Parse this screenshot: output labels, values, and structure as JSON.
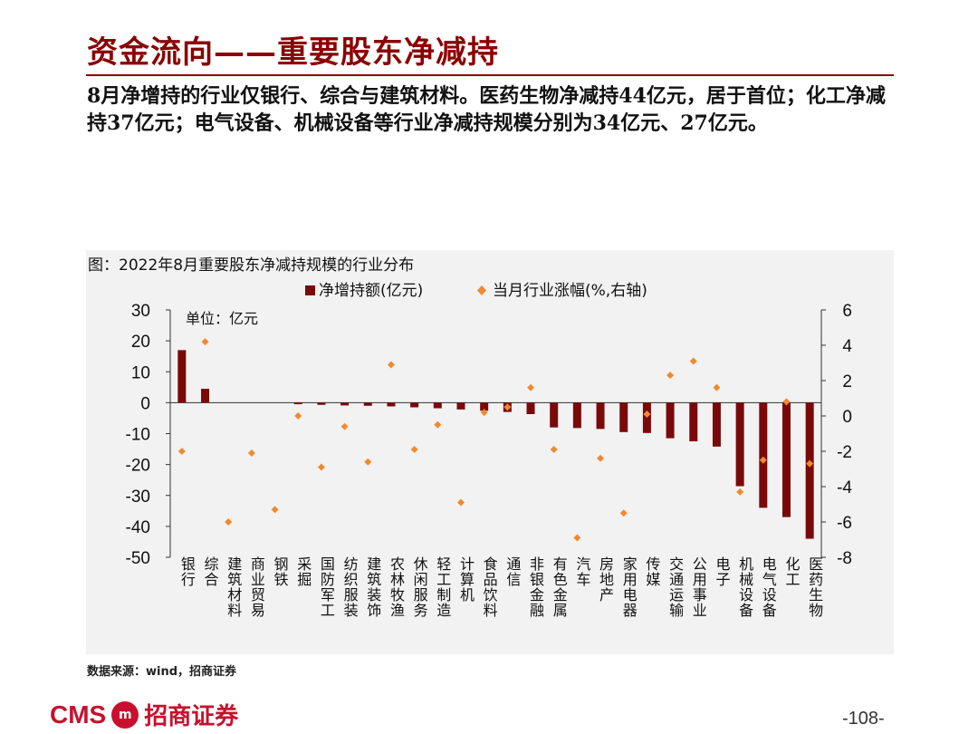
{
  "header": {
    "title": "资金流向——重要股东净减持",
    "summary": "8月净增持的行业仅银行、综合与建筑材料。医药生物净减持44亿元，居于首位；化工净减持37亿元；电气设备、机械设备等行业净减持规模分别为34亿元、27亿元。"
  },
  "chart_data": {
    "type": "bar",
    "title": "图：2022年8月重要股东净减持规模的行业分布",
    "unit_note": "单位：亿元",
    "categories": [
      "银行",
      "综合",
      "建筑材料",
      "商业贸易",
      "钢铁",
      "采掘",
      "国防军工",
      "纺织服装",
      "建筑装饰",
      "农林牧渔",
      "休闲服务",
      "轻工制造",
      "计算机",
      "食品饮料",
      "通信",
      "非银金融",
      "有色金属",
      "汽车",
      "房地产",
      "家用电器",
      "传媒",
      "交通运输",
      "公用事业",
      "电子",
      "机械设备",
      "电气设备",
      "化工",
      "医药生物"
    ],
    "series": [
      {
        "name": "净增持额(亿元)",
        "kind": "bar",
        "axis": "left",
        "color": "#7a0a0a",
        "values": [
          17,
          4.5,
          0,
          0,
          0,
          -0.5,
          -0.7,
          -0.9,
          -1,
          -1.2,
          -1.5,
          -1.8,
          -2.2,
          -2.6,
          -3,
          -3.7,
          -8,
          -8.2,
          -8.5,
          -9.5,
          -9.8,
          -11.5,
          -12.5,
          -14.2,
          -27,
          -34,
          -37,
          -44
        ]
      },
      {
        "name": "当月行业涨幅(%,右轴)",
        "kind": "scatter",
        "axis": "right",
        "color": "#f08a2e",
        "values": [
          -2,
          4.2,
          -6,
          -2.1,
          -5.3,
          0,
          -2.9,
          -0.6,
          -2.6,
          2.9,
          -1.9,
          -0.5,
          -4.9,
          0.2,
          0.5,
          1.6,
          -1.9,
          -6.9,
          -2.4,
          -5.5,
          0.1,
          2.3,
          3.1,
          1.6,
          -4.3,
          -2.5,
          0.8,
          -2.7
        ]
      }
    ],
    "ylim": [
      -50,
      30
    ],
    "yticks": [
      30,
      20,
      10,
      0,
      -10,
      -20,
      -30,
      -40,
      -50
    ],
    "y2lim": [
      -8,
      6
    ],
    "y2ticks": [
      6,
      4,
      2,
      0,
      -2,
      -4,
      -6,
      -8
    ],
    "legend_position": "top"
  },
  "source": "数据来源：wind，招商证券",
  "footer": {
    "logo_text": "CMS",
    "logo_mark": "m",
    "logo_cn": "招商证券",
    "page_number": "-108-"
  }
}
